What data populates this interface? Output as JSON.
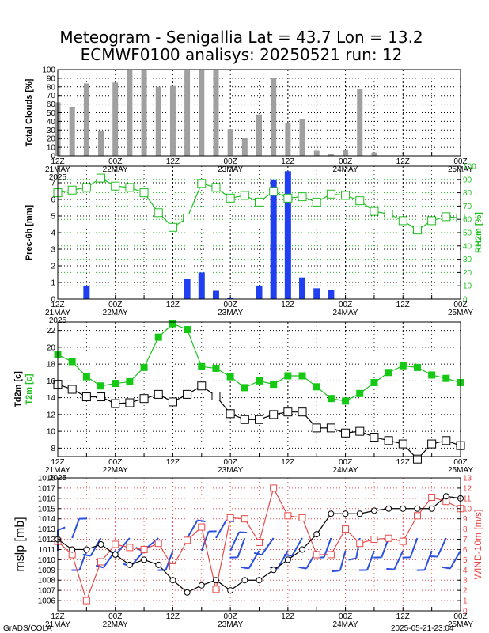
{
  "title": {
    "line1": "Meteogram - Senigallia Lat = 43.7 Lon = 13.2",
    "line2": "ECMWF0100 analisys: 20250521 run: 12"
  },
  "time_axis": {
    "labels": [
      {
        "t": 0,
        "top": "12Z",
        "bottom": "21MAY"
      },
      {
        "t": 2,
        "top": "00Z",
        "bottom": "22MAY"
      },
      {
        "t": 4,
        "top": "12Z",
        "bottom": ""
      },
      {
        "t": 6,
        "top": "00Z",
        "bottom": "23MAY"
      },
      {
        "t": 8,
        "top": "12Z",
        "bottom": ""
      },
      {
        "t": 10,
        "top": "00Z",
        "bottom": "24MAY"
      },
      {
        "t": 12,
        "top": "12Z",
        "bottom": ""
      },
      {
        "t": 14,
        "top": "00Z",
        "bottom": "25MAY"
      }
    ],
    "year": "2025",
    "step_hours": 6
  },
  "footer": {
    "left": "GrADS/COLA",
    "right": "2025-05-21-23:04"
  },
  "colors": {
    "gray_bar": "#a0a0a0",
    "blue_bar": "#1f3ff0",
    "green": "#1fbf1f",
    "green_fill": "#14c814",
    "red": "#e84848",
    "wind_blue": "#2a50e0",
    "black": "#000000"
  },
  "chart_data": [
    {
      "type": "bar",
      "id": "clouds",
      "ylabel": "Total Clouds [%]",
      "ylim": [
        0,
        100
      ],
      "yticks": [
        0,
        10,
        20,
        30,
        40,
        50,
        60,
        70,
        80,
        90,
        100
      ],
      "grid": true,
      "t": [
        0,
        0.5,
        1,
        1.5,
        2,
        2.5,
        3,
        3.5,
        4,
        4.5,
        5,
        5.5,
        6,
        6.5,
        7,
        7.5,
        8,
        8.5,
        9,
        9.5,
        10,
        10.5,
        11,
        11.5,
        12,
        12.5,
        13,
        13.5,
        14
      ],
      "values": [
        62,
        57,
        84,
        29,
        85,
        100,
        100,
        80,
        81,
        99,
        100,
        100,
        31,
        21,
        48,
        90,
        38,
        43,
        6,
        2,
        7,
        77,
        4,
        0,
        0,
        0,
        0,
        0,
        0
      ]
    },
    {
      "type": "bar+line",
      "id": "precip_rh",
      "ylabel": "Prec-6h [mm]",
      "ylim": [
        0,
        8
      ],
      "yticks": [
        0,
        1,
        2,
        3,
        4,
        5,
        6,
        7
      ],
      "y2label": "RH2m [%]",
      "y2lim": [
        0,
        100
      ],
      "y2ticks": [
        0,
        10,
        20,
        30,
        40,
        50,
        60,
        70,
        80,
        90,
        100
      ],
      "grid": true,
      "precip": {
        "t": [
          1,
          4.5,
          5,
          5.5,
          6,
          7,
          7.5,
          8,
          8.5,
          9,
          9.5,
          10
        ],
        "values": [
          0.8,
          1.2,
          1.6,
          0.5,
          0.1,
          0.8,
          7.2,
          7.7,
          1.3,
          0.65,
          0.55,
          0.02
        ]
      },
      "rh": {
        "name": "RH2m",
        "t": [
          0,
          0.5,
          1,
          1.5,
          2,
          2.5,
          3,
          3.5,
          4,
          4.5,
          5,
          5.5,
          6,
          6.5,
          7,
          7.5,
          8,
          8.5,
          9,
          9.5,
          10,
          10.5,
          11,
          11.5,
          12,
          12.5,
          13,
          13.5,
          14
        ],
        "values": [
          80,
          82,
          84,
          91,
          85,
          84,
          80,
          65,
          54,
          61,
          87,
          84,
          76,
          78,
          73,
          81,
          76,
          77,
          73,
          79,
          78,
          74,
          66,
          64,
          59,
          52,
          59,
          62,
          61
        ]
      }
    },
    {
      "type": "line",
      "id": "temps",
      "ylabel": "Td2m [c]",
      "ylabel2": "T2m [c]",
      "ylim": [
        7,
        23
      ],
      "yticks": [
        8,
        10,
        12,
        14,
        16,
        18,
        20,
        22
      ],
      "grid": true,
      "series": [
        {
          "name": "T2m",
          "t": [
            0,
            0.5,
            1,
            1.5,
            2,
            2.5,
            3,
            3.5,
            4,
            4.5,
            5,
            5.5,
            6,
            6.5,
            7,
            7.5,
            8,
            8.5,
            9,
            9.5,
            10,
            10.5,
            11,
            11.5,
            12,
            12.5,
            13,
            13.5,
            14
          ],
          "values": [
            19.1,
            18.3,
            16.5,
            15.4,
            15.7,
            15.9,
            17.6,
            21.2,
            22.8,
            22.1,
            17.7,
            17.5,
            16.5,
            15.2,
            16.0,
            15.6,
            16.6,
            16.6,
            15.3,
            13.9,
            13.6,
            14.5,
            15.8,
            17.0,
            17.8,
            17.6,
            16.7,
            16.3,
            15.8
          ]
        },
        {
          "name": "Td2m",
          "t": [
            0,
            0.5,
            1,
            1.5,
            2,
            2.5,
            3,
            3.5,
            4,
            4.5,
            5,
            5.5,
            6,
            6.5,
            7,
            7.5,
            8,
            8.5,
            9,
            9.5,
            10,
            10.5,
            11,
            11.5,
            12,
            12.5,
            13,
            13.5,
            14
          ],
          "values": [
            15.6,
            15.0,
            14.1,
            14.1,
            13.3,
            13.4,
            13.9,
            14.4,
            13.5,
            14.4,
            15.4,
            14.2,
            12.1,
            11.4,
            11.4,
            12.0,
            12.3,
            12.3,
            10.4,
            10.4,
            9.8,
            10.0,
            9.3,
            8.9,
            8.5,
            6.7,
            8.5,
            8.9,
            8.3
          ]
        }
      ]
    },
    {
      "type": "line+barbs",
      "id": "mslp_wind",
      "ylabel": "mslp [mb]",
      "ylim": [
        1005,
        1018
      ],
      "yticks": [
        1006,
        1007,
        1008,
        1009,
        1010,
        1011,
        1012,
        1013,
        1014,
        1015,
        1016,
        1017,
        1018
      ],
      "y2label": "WIND-10m [m/s]",
      "y2lim": [
        0,
        13
      ],
      "y2ticks": [
        0,
        1,
        2,
        3,
        4,
        5,
        6,
        7,
        8,
        9,
        10,
        11,
        12,
        13
      ],
      "grid": true,
      "mslp": {
        "name": "mslp",
        "t": [
          0,
          0.5,
          1,
          1.5,
          2,
          2.5,
          3,
          3.5,
          4,
          4.5,
          5,
          5.5,
          6,
          6.5,
          7,
          7.5,
          8,
          8.5,
          9,
          9.5,
          10,
          10.5,
          11,
          11.5,
          12,
          12.5,
          13,
          13.5,
          14
        ],
        "values": [
          1012,
          1011,
          1011,
          1011.5,
          1010.5,
          1009.5,
          1010,
          1009.5,
          1008,
          1006.8,
          1007.5,
          1008,
          1007,
          1008,
          1008,
          1009,
          1010,
          1011,
          1012.5,
          1014.5,
          1014.5,
          1014.5,
          1014.8,
          1015,
          1015,
          1015,
          1015,
          1016.2,
          1016
        ]
      },
      "wind": {
        "name": "WIND-10m",
        "t": [
          0,
          0.5,
          1,
          1.5,
          2,
          2.5,
          3,
          3.5,
          4,
          4.5,
          5,
          5.5,
          6,
          6.5,
          7,
          7.5,
          8,
          8.5,
          9,
          9.5,
          10,
          10.5,
          11,
          11.5,
          12,
          12.5,
          13,
          13.5,
          14
        ],
        "values": [
          6.8,
          5.5,
          1.0,
          4.8,
          6.5,
          6.2,
          6.0,
          6.6,
          4.3,
          6.9,
          8.2,
          2.1,
          9.1,
          9.0,
          6.7,
          12.0,
          9.3,
          9.1,
          5.5,
          5.5,
          8.0,
          6.6,
          7.0,
          7.1,
          6.8,
          9.3,
          11.1,
          10.7,
          10.0
        ]
      },
      "barbs_deg": [
        0,
        20,
        200,
        210,
        215,
        220,
        220,
        230,
        200,
        30,
        20,
        30,
        25,
        200,
        210,
        215,
        210,
        210,
        210,
        200,
        195,
        190,
        200,
        200,
        205,
        200,
        200,
        205,
        210
      ]
    }
  ]
}
